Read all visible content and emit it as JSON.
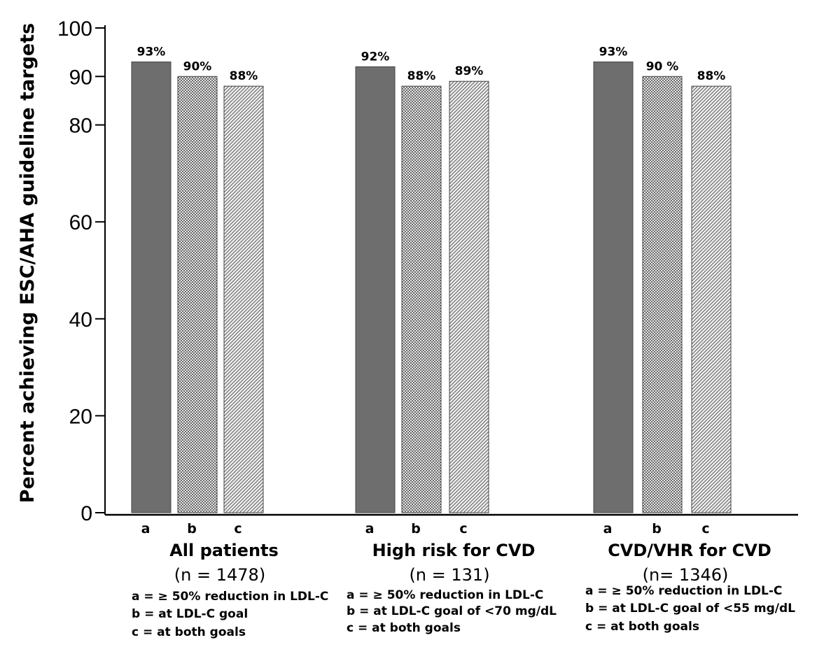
{
  "chart_data": {
    "type": "bar",
    "title": "",
    "ylabel": "Percent achieving ESC/AHA guideline targets",
    "xlabel": "",
    "ylim": [
      0,
      100
    ],
    "yticks": [
      0,
      20,
      40,
      60,
      80,
      90,
      100
    ],
    "series_names": [
      "a",
      "b",
      "c"
    ],
    "groups": [
      {
        "title": "All patients",
        "n_label": "(n =  1478)",
        "values": [
          93,
          90,
          88
        ],
        "value_labels": [
          "93%",
          "90%",
          "88%"
        ],
        "bar_letters": [
          "a",
          "b",
          "c"
        ],
        "legend": [
          "a = ≥ 50% reduction in LDL-C",
          "b = at LDL-C goal",
          "c = at both goals"
        ]
      },
      {
        "title": "High risk for CVD",
        "n_label": "(n = 131)",
        "values": [
          92,
          88,
          89
        ],
        "value_labels": [
          "92%",
          "88%",
          "89%"
        ],
        "bar_letters": [
          "a",
          "b",
          "c"
        ],
        "legend": [
          "a = ≥ 50% reduction in LDL-C",
          "b = at LDL-C goal of  <70 mg/dL",
          "c = at both goals"
        ]
      },
      {
        "title": "CVD/VHR for CVD",
        "n_label": "(n= 1346)",
        "values": [
          93,
          90,
          88
        ],
        "value_labels": [
          "93%",
          "90 %",
          "88%"
        ],
        "bar_letters": [
          "a",
          "b",
          "c"
        ],
        "legend": [
          "a = ≥ 50% reduction in LDL-C",
          "b =  at LDL-C goal of <55 mg/dL",
          "c = at both goals"
        ]
      }
    ],
    "colors": {
      "a": "#6e6e6e",
      "b": "#9a9a9a",
      "c": "#c4c4c4"
    }
  }
}
